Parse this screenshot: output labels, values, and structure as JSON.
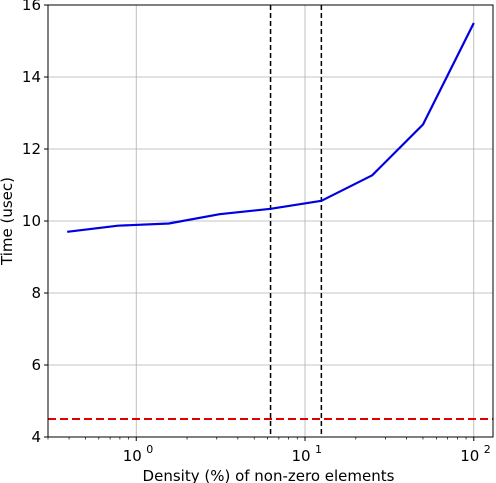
{
  "chart_data": {
    "type": "line",
    "x_scale": "log",
    "xlabel": "Density (%) of non-zero elements",
    "ylabel": "Time (usec)",
    "xlim": [
      0.3,
      130
    ],
    "ylim": [
      4,
      16
    ],
    "grid": true,
    "x_ticks": [
      {
        "value": 1,
        "base": "10",
        "exp": "0"
      },
      {
        "value": 10,
        "base": "10",
        "exp": "1"
      },
      {
        "value": 100,
        "base": "10",
        "exp": "2"
      }
    ],
    "y_ticks": [
      4,
      6,
      8,
      10,
      12,
      14,
      16
    ],
    "series": [
      {
        "color": "#0000e0",
        "x": [
          0.39,
          0.78,
          1.56,
          3.12,
          6.25,
          12.5,
          25,
          50,
          100
        ],
        "y": [
          9.7,
          9.87,
          9.93,
          10.19,
          10.34,
          10.56,
          11.27,
          12.68,
          15.5
        ]
      }
    ],
    "reference_lines": [
      {
        "orientation": "vertical",
        "value": 6.25,
        "color": "#000000",
        "style": "dashed"
      },
      {
        "orientation": "vertical",
        "value": 12.5,
        "color": "#000000",
        "style": "dashed"
      },
      {
        "orientation": "horizontal",
        "value": 4.5,
        "color": "#e00000",
        "style": "dashed"
      }
    ]
  }
}
